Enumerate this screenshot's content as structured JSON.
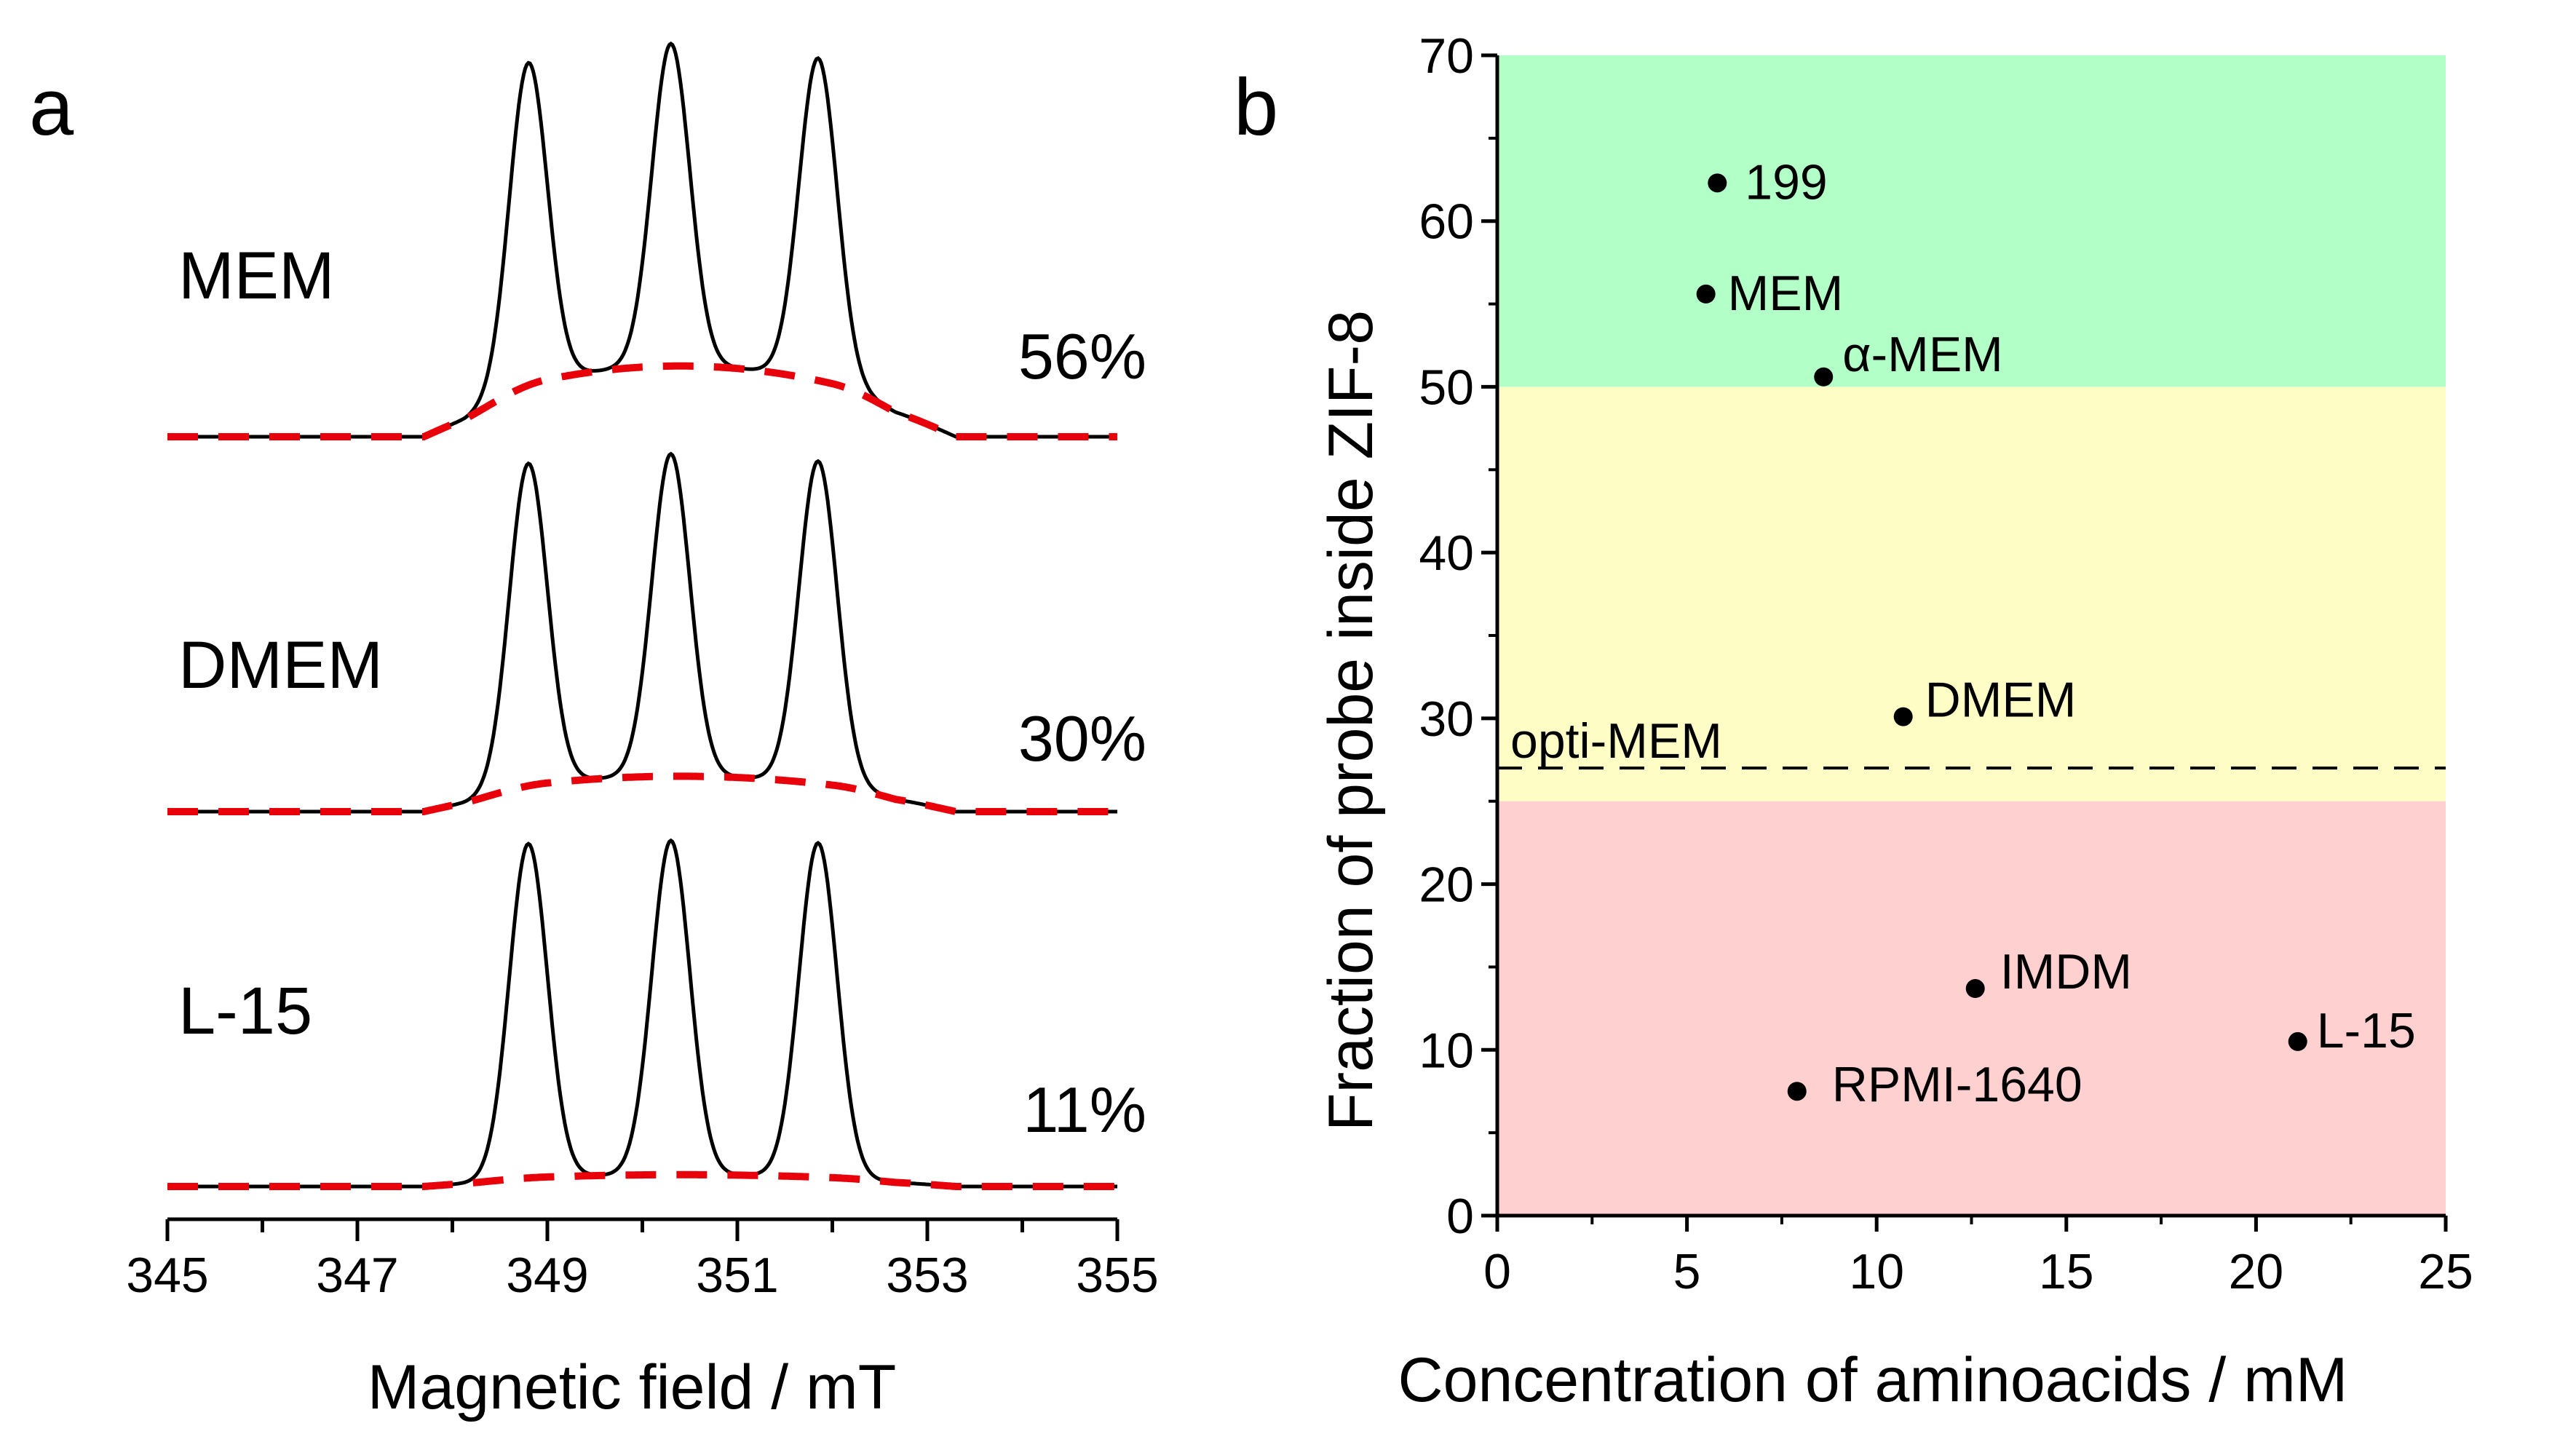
{
  "panel_a": {
    "label": "a",
    "chart_data": {
      "type": "line",
      "xlabel": "Magnetic field / mT",
      "xlim": [
        345,
        355
      ],
      "xticks_labeled": [
        345,
        347,
        349,
        351,
        353,
        355
      ],
      "xticks_minor": [
        346,
        348,
        350,
        352,
        354
      ],
      "peaks_mT": [
        348.8,
        350.3,
        351.85
      ],
      "series": [
        {
          "name": "MEM",
          "fraction_label": "56%",
          "peak_height": 0.82,
          "broad_height": 0.18,
          "style": "black solid + red dashed broad component"
        },
        {
          "name": "DMEM",
          "fraction_label": "30%",
          "peak_height": 0.82,
          "broad_height": 0.09,
          "style": "black solid + red dashed broad component"
        },
        {
          "name": "L-15",
          "fraction_label": "11%",
          "peak_height": 0.85,
          "broad_height": 0.03,
          "style": "black solid + red dashed broad component"
        }
      ]
    }
  },
  "panel_b": {
    "label": "b",
    "chart_data": {
      "type": "scatter",
      "xlabel": "Concentration of aminoacids / mM",
      "ylabel": "Fraction of probe inside ZIF-8",
      "xlim": [
        0,
        25
      ],
      "ylim": [
        0,
        70
      ],
      "xticks": [
        0,
        5,
        10,
        15,
        20,
        25
      ],
      "yticks": [
        0,
        10,
        20,
        30,
        40,
        50,
        60,
        70
      ],
      "bands": [
        {
          "from": 50,
          "to": 70,
          "color": "#b3ffc8"
        },
        {
          "from": 25,
          "to": 50,
          "color": "#fffdc6"
        },
        {
          "from": 0,
          "to": 25,
          "color": "#ffd0d0"
        }
      ],
      "reference_line": {
        "y": 27,
        "label": "opti-MEM",
        "style": "dashed"
      },
      "points": [
        {
          "name": "199",
          "x": 5.8,
          "y": 62.3
        },
        {
          "name": "MEM",
          "x": 5.5,
          "y": 55.6
        },
        {
          "name": "α-MEM",
          "x": 8.6,
          "y": 50.6
        },
        {
          "name": "DMEM",
          "x": 10.7,
          "y": 30.1
        },
        {
          "name": "IMDM",
          "x": 12.6,
          "y": 13.7
        },
        {
          "name": "L-15",
          "x": 21.1,
          "y": 10.5
        },
        {
          "name": "RPMI-1640",
          "x": 7.9,
          "y": 7.5
        }
      ]
    }
  },
  "colors": {
    "trace": "#000000",
    "fit": "#e8000b",
    "axis": "#000000"
  }
}
